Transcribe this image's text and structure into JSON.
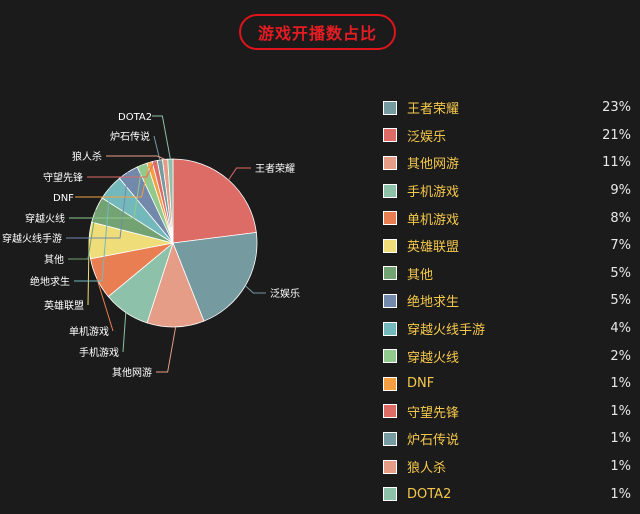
{
  "header": {
    "title": "游戏开播数占比"
  },
  "colors": {
    "background": "#1b1b1b",
    "title_red": "#e51c23",
    "legend_text": "#f5c84c",
    "value_text": "#e8e8e8"
  },
  "chart_data": {
    "type": "pie",
    "title": "游戏开播数占比",
    "legend_placement": "right",
    "slices": [
      {
        "name": "王者荣耀",
        "value": 23,
        "display": "23%",
        "color": "#dd6b66"
      },
      {
        "name": "泛娱乐",
        "value": 21,
        "display": "21%",
        "color": "#759aa0"
      },
      {
        "name": "其他网游",
        "value": 11,
        "display": "11%",
        "color": "#e69d87"
      },
      {
        "name": "手机游戏",
        "value": 9,
        "display": "9%",
        "color": "#8dc1a9"
      },
      {
        "name": "单机游戏",
        "value": 8,
        "display": "8%",
        "color": "#ea7e53"
      },
      {
        "name": "英雄联盟",
        "value": 7,
        "display": "7%",
        "color": "#eedd78"
      },
      {
        "name": "其他",
        "value": 5,
        "display": "5%",
        "color": "#73a373"
      },
      {
        "name": "绝地求生",
        "value": 5,
        "display": "5%",
        "color": "#73b9bc"
      },
      {
        "name": "穿越火线手游",
        "value": 4,
        "display": "4%",
        "color": "#7289ab"
      },
      {
        "name": "穿越火线",
        "value": 2,
        "display": "2%",
        "color": "#91ca8c"
      },
      {
        "name": "DNF",
        "value": 1,
        "display": "1%",
        "color": "#f49f42"
      },
      {
        "name": "守望先锋",
        "value": 1,
        "display": "1%",
        "color": "#dd6b66"
      },
      {
        "name": "炉石传说",
        "value": 1,
        "display": "1%",
        "color": "#759aa0"
      },
      {
        "name": "狼人杀",
        "value": 1,
        "display": "1%",
        "color": "#e69d87"
      },
      {
        "name": "DOTA2",
        "value": 1,
        "display": "1%",
        "color": "#8dc1a9"
      }
    ],
    "legend": [
      {
        "name": "王者荣耀",
        "display": "23%",
        "color": "#759aa0"
      },
      {
        "name": "泛娱乐",
        "display": "21%",
        "color": "#dd6b66"
      },
      {
        "name": "其他网游",
        "display": "11%",
        "color": "#e69d87"
      },
      {
        "name": "手机游戏",
        "display": "9%",
        "color": "#8dc1a9"
      },
      {
        "name": "单机游戏",
        "display": "8%",
        "color": "#ea7e53"
      },
      {
        "name": "英雄联盟",
        "display": "7%",
        "color": "#eedd78"
      },
      {
        "name": "其他",
        "display": "5%",
        "color": "#73a373"
      },
      {
        "name": "绝地求生",
        "display": "5%",
        "color": "#7289ab"
      },
      {
        "name": "穿越火线手游",
        "display": "4%",
        "color": "#73b9bc"
      },
      {
        "name": "穿越火线",
        "display": "2%",
        "color": "#91ca8c"
      },
      {
        "name": "DNF",
        "display": "1%",
        "color": "#f49f42"
      },
      {
        "name": "守望先锋",
        "display": "1%",
        "color": "#dd6b66"
      },
      {
        "name": "炉石传说",
        "display": "1%",
        "color": "#759aa0"
      },
      {
        "name": "狼人杀",
        "display": "1%",
        "color": "#e69d87"
      },
      {
        "name": "DOTA2",
        "display": "1%",
        "color": "#8dc1a9"
      }
    ]
  }
}
